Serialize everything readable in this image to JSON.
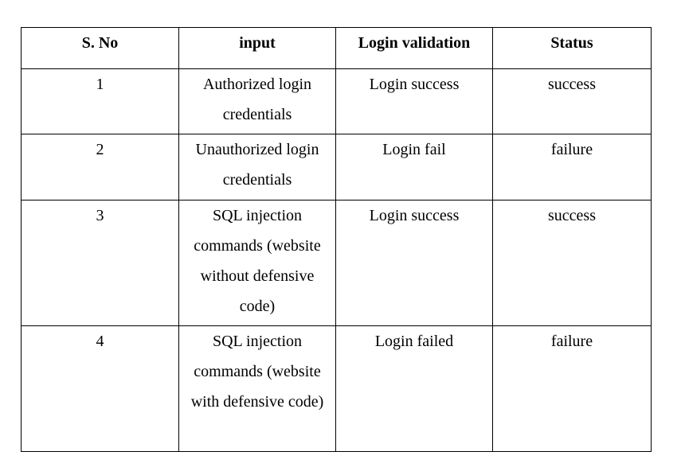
{
  "table": {
    "headers": [
      "S. No",
      "input",
      "Login validation",
      "Status"
    ],
    "rows": [
      {
        "sno": "1",
        "input": "Authorized login credentials",
        "validation": "Login success",
        "status": "success"
      },
      {
        "sno": "2",
        "input": "Unauthorized login credentials",
        "validation": "Login fail",
        "status": "failure"
      },
      {
        "sno": "3",
        "input": "SQL injection commands (website without defensive code)",
        "validation": "Login success",
        "status": "success"
      },
      {
        "sno": "4",
        "input": "SQL injection commands (website with defensive code)",
        "validation": "Login failed",
        "status": "failure"
      }
    ]
  }
}
